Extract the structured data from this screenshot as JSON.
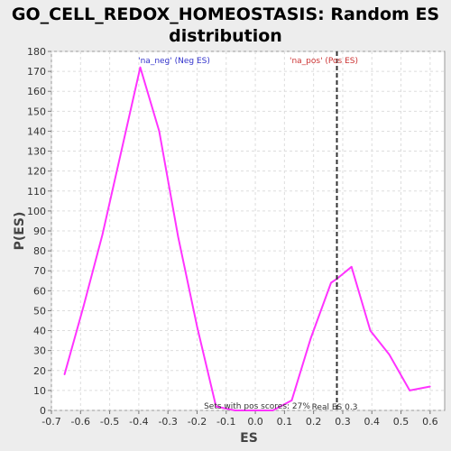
{
  "chart_data": {
    "type": "line",
    "title_line1": "GO_CELL_REDOX_HOMEOSTASIS: Random ES",
    "title_line2": "distribution",
    "xlabel": "ES",
    "ylabel": "P(ES)",
    "xlim": [
      -0.7,
      0.65
    ],
    "ylim": [
      0,
      180
    ],
    "x_ticks": [
      "-0.7",
      "-0.6",
      "-0.5",
      "-0.4",
      "-0.3",
      "-0.2",
      "-0.1",
      "0.0",
      "0.1",
      "0.2",
      "0.3",
      "0.4",
      "0.5",
      "0.6"
    ],
    "y_ticks": [
      "0",
      "10",
      "20",
      "30",
      "40",
      "50",
      "60",
      "70",
      "80",
      "90",
      "100",
      "110",
      "120",
      "130",
      "140",
      "150",
      "160",
      "170",
      "180"
    ],
    "grid": true,
    "series": [
      {
        "color": "#ff33ff",
        "x": [
          -0.655,
          -0.59,
          -0.525,
          -0.46,
          -0.395,
          -0.33,
          -0.265,
          -0.2,
          -0.135,
          -0.07,
          -0.005,
          0.06,
          0.125,
          0.19,
          0.26,
          0.28,
          0.33,
          0.395,
          0.46,
          0.53,
          0.6
        ],
        "y": [
          18,
          52,
          88,
          130,
          172,
          140,
          87,
          42,
          2,
          0,
          0,
          0,
          5,
          36,
          64,
          66,
          72,
          40,
          28,
          10,
          12
        ]
      }
    ],
    "real_es": 0.28,
    "real_es_color": "#333333",
    "annotations": {
      "neg_label": "'na_neg' (Neg ES)",
      "neg_color": "#3333cc",
      "pos_label": "'na_pos' (Pos ES)",
      "pos_color": "#cc3333",
      "pos_scores_text": "Sets with pos scores: 27%",
      "real_es_text": "Real ES 0.3"
    }
  }
}
